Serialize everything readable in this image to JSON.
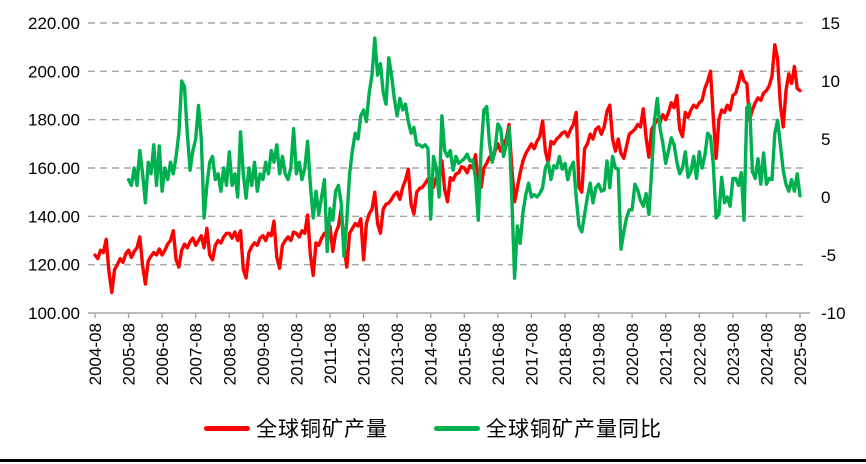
{
  "colors": {
    "production_line": "#FF0000",
    "yoy_line": "#00B050",
    "gridline": "#A6A6A6",
    "axis": "#A6A6A6",
    "text": "#000000",
    "bottom_rule": "#000000",
    "background": "#FFFFFF"
  },
  "legend": {
    "items": [
      {
        "label": "全球铜矿产量",
        "color": "#FF0000"
      },
      {
        "label": "全球铜矿产量同比",
        "color": "#00B050"
      }
    ]
  },
  "chart_data": {
    "type": "line",
    "title": "",
    "x_frequency": "monthly",
    "x_start": "2004-08",
    "x_end": "2025-08",
    "x_tick_labels": [
      "2004-08",
      "2005-08",
      "2006-08",
      "2007-08",
      "2008-08",
      "2009-08",
      "2010-08",
      "2011-08",
      "2012-08",
      "2013-08",
      "2014-08",
      "2015-08",
      "2016-08",
      "2017-08",
      "2018-08",
      "2019-08",
      "2020-08",
      "2021-08",
      "2022-08",
      "2023-08",
      "2024-08",
      "2025-08"
    ],
    "grid": "horizontal-dashed",
    "legend_position": "bottom",
    "left_axis": {
      "min": 100,
      "max": 220,
      "step": 20,
      "tick_labels": [
        "220.00",
        "200.00",
        "180.00",
        "160.00",
        "140.00",
        "120.00",
        "100.00"
      ],
      "tick_values": [
        220,
        200,
        180,
        160,
        140,
        120,
        100
      ]
    },
    "right_axis": {
      "min": -10,
      "max": 15,
      "step": 5,
      "tick_labels": [
        "15",
        "10",
        "5",
        "0",
        "-5",
        "-10"
      ],
      "tick_values": [
        15,
        10,
        5,
        0,
        -5,
        -10
      ]
    },
    "series": [
      {
        "name": "全球铜矿产量",
        "axis": "left",
        "color": "#FF0000",
        "values": [
          124,
          122.5,
          126,
          125,
          130.5,
          117,
          108.5,
          118,
          120,
          122.5,
          121,
          124.5,
          126,
          123,
          125.5,
          127,
          131.5,
          119.5,
          112,
          121.5,
          123.5,
          125,
          124,
          126.5,
          124,
          126,
          128.5,
          130,
          134,
          122,
          119,
          126,
          128.5,
          127,
          129.5,
          131,
          128,
          130,
          132,
          127,
          135,
          124,
          122,
          128,
          130,
          129,
          131.5,
          133,
          133,
          131,
          133.5,
          130,
          134,
          118,
          114.5,
          125,
          127.5,
          129,
          128,
          131,
          132,
          130,
          133,
          132,
          138,
          123,
          118.5,
          128,
          130,
          131.5,
          130,
          133.5,
          133,
          131.5,
          134,
          133,
          140.5,
          124,
          115.5,
          129,
          128,
          131,
          133,
          131.5,
          136,
          125.5,
          133,
          136,
          143,
          128,
          119,
          133,
          135,
          137,
          136,
          139,
          122,
          137,
          141,
          143,
          150,
          137,
          133,
          143,
          145,
          145.5,
          147,
          149,
          150,
          147,
          152,
          155,
          159.5,
          145,
          141,
          150,
          151.5,
          152,
          153.5,
          155.5,
          155,
          152,
          156,
          155,
          163,
          151,
          146,
          156,
          155,
          157.5,
          158,
          160.5,
          160,
          158,
          161,
          160,
          165.5,
          153,
          152,
          160,
          162,
          164.5,
          163,
          167,
          170,
          167,
          170,
          172,
          178,
          160,
          146,
          152,
          158,
          163,
          166,
          168,
          170,
          168,
          171,
          173,
          179.5,
          167,
          162,
          171,
          170,
          172,
          173,
          174.5,
          175,
          173,
          176,
          178,
          183,
          152,
          150,
          168,
          170,
          174,
          172,
          176,
          177,
          174,
          177,
          183.5,
          186,
          172,
          167,
          172,
          166,
          164,
          169,
          174,
          175,
          176,
          178,
          177,
          184.5,
          172.5,
          164.5,
          176,
          178,
          180,
          179,
          182,
          180,
          183,
          187,
          185,
          190,
          176,
          173,
          183,
          181,
          184,
          186,
          185,
          187,
          188,
          193,
          196,
          200,
          181,
          164,
          180,
          184,
          183,
          186,
          184,
          190,
          191,
          195,
          200,
          196,
          195,
          180,
          184,
          187,
          189,
          188,
          191,
          192,
          194,
          198,
          211,
          205,
          186,
          177,
          192,
          199,
          195,
          202,
          193,
          192
        ]
      },
      {
        "name": "全球铜矿产量同比",
        "axis": "right",
        "color": "#00B050",
        "values": [
          null,
          null,
          null,
          null,
          null,
          null,
          null,
          null,
          null,
          null,
          null,
          null,
          1.5,
          1.0,
          2.5,
          1.0,
          4.0,
          2.0,
          -0.5,
          3.0,
          2.0,
          4.5,
          1.0,
          4.4,
          0.5,
          2.5,
          1.5,
          3.0,
          2.0,
          3.5,
          5.5,
          10.0,
          9.5,
          5.5,
          2.3,
          4.0,
          5.0,
          7.9,
          5.0,
          -1.8,
          1.0,
          3.0,
          3.5,
          1.5,
          2.0,
          0.5,
          2.5,
          1.0,
          3.9,
          1.0,
          2.0,
          0.0,
          5.6,
          2.0,
          -0.1,
          2.5,
          1.0,
          3.0,
          0.5,
          2.0,
          1.5,
          3.0,
          2.0,
          4.0,
          3.0,
          4.5,
          2.0,
          3.5,
          2.0,
          1.5,
          2.5,
          5.9,
          2.0,
          3.0,
          1.5,
          2.5,
          4.8,
          1.0,
          -1.8,
          0.5,
          -1.5,
          0.0,
          1.5,
          -4.7,
          -1.0,
          -2.0,
          0.5,
          1.0,
          -0.5,
          -5.1,
          -2.0,
          2.0,
          4.0,
          5.5,
          5.0,
          7.0,
          7.5,
          6.5,
          9.0,
          10.5,
          13.7,
          10.5,
          11.5,
          9.0,
          8.0,
          12.0,
          10.5,
          8.5,
          7.0,
          8.5,
          7.5,
          8.0,
          6.5,
          5.5,
          6.0,
          4.5,
          4.5,
          4.3,
          4.5,
          4.2,
          -1.9,
          3.5,
          2.5,
          0.0,
          7.0,
          4.0,
          3.5,
          4.0,
          2.3,
          3.5,
          2.9,
          3.1,
          3.3,
          3.7,
          3.1,
          3.2,
          1.6,
          -2.0,
          4.1,
          7.5,
          7.8,
          4.6,
          3.0,
          4.2,
          6.3,
          5.9,
          3.5,
          4.5,
          6.0,
          0.0,
          -7.0,
          -2.5,
          -4.0,
          -1.3,
          0.2,
          1.2,
          0.0,
          0.2,
          0.0,
          0.3,
          0.8,
          2.5,
          3.0,
          1.5,
          2.7,
          2.5,
          3.5,
          2.4,
          2.9,
          1.5,
          2.5,
          3.0,
          0.0,
          -2.5,
          -3.0,
          -1.5,
          0.0,
          1.2,
          -0.5,
          0.8,
          1.1,
          0.5,
          0.6,
          3.1,
          0.8,
          3.5,
          2.5,
          2.4,
          -4.5,
          -3.0,
          -1.8,
          -1.1,
          -1.1,
          1.1,
          0.6,
          -0.3,
          -0.8,
          0.3,
          -1.5,
          2.3,
          6.6,
          8.5,
          5.9,
          4.6,
          2.9,
          4.0,
          5.1,
          4.5,
          3.0,
          2.0,
          2.5,
          3.9,
          1.7,
          2.2,
          3.5,
          1.6,
          3.9,
          2.5,
          3.6,
          5.5,
          5.2,
          2.8,
          -1.8,
          -1.5,
          1.7,
          -0.5,
          0.0,
          -0.8,
          1.6,
          1.6,
          1.0,
          2.1,
          -2.0,
          7.7,
          8.0,
          2.2,
          1.6,
          3.3,
          1.1,
          3.8,
          1.1,
          1.6,
          1.5,
          5.5,
          6.6,
          4.5,
          2.3,
          1.1,
          0.5,
          1.5,
          0.5,
          2.0,
          0.1
        ]
      }
    ]
  }
}
